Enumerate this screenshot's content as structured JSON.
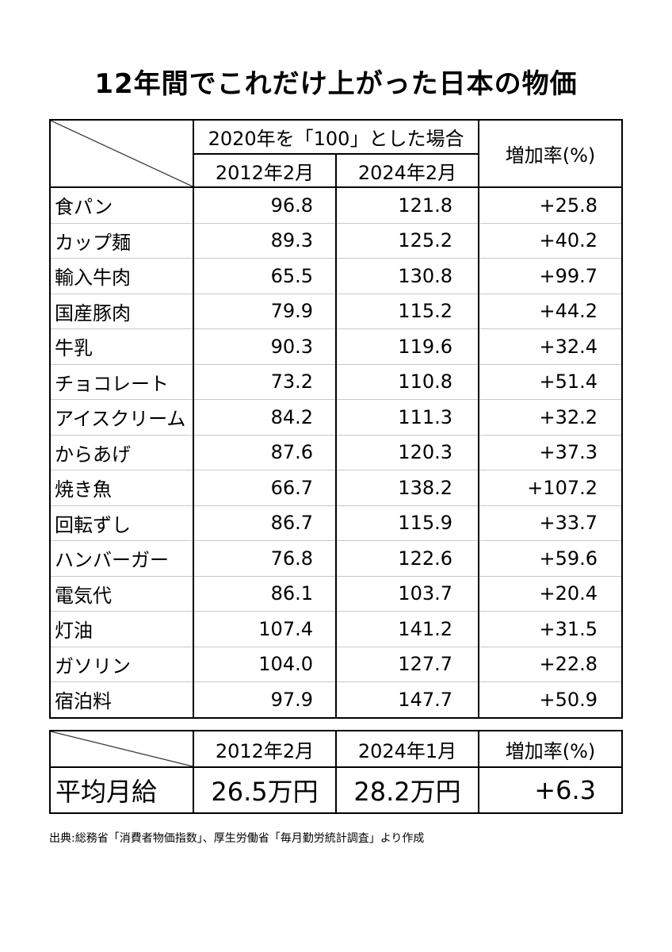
{
  "title": "12年間でこれだけ上がった日本の物価",
  "table": {
    "header_group": "2020年を「100」とした場合",
    "col_2012": "2012年2月",
    "col_2024": "2024年2月",
    "col_rate": "増加率(%)",
    "rows": [
      {
        "item": "食パン",
        "v2012": "96.8",
        "v2024": "121.8",
        "rate": "+25.8"
      },
      {
        "item": "カップ麺",
        "v2012": "89.3",
        "v2024": "125.2",
        "rate": "+40.2"
      },
      {
        "item": "輸入牛肉",
        "v2012": "65.5",
        "v2024": "130.8",
        "rate": "+99.7"
      },
      {
        "item": "国産豚肉",
        "v2012": "79.9",
        "v2024": "115.2",
        "rate": "+44.2"
      },
      {
        "item": "牛乳",
        "v2012": "90.3",
        "v2024": "119.6",
        "rate": "+32.4"
      },
      {
        "item": "チョコレート",
        "v2012": "73.2",
        "v2024": "110.8",
        "rate": "+51.4"
      },
      {
        "item": "アイスクリーム",
        "v2012": "84.2",
        "v2024": "111.3",
        "rate": "+32.2"
      },
      {
        "item": "からあげ",
        "v2012": "87.6",
        "v2024": "120.3",
        "rate": "+37.3"
      },
      {
        "item": "焼き魚",
        "v2012": "66.7",
        "v2024": "138.2",
        "rate": "+107.2"
      },
      {
        "item": "回転ずし",
        "v2012": "86.7",
        "v2024": "115.9",
        "rate": "+33.7"
      },
      {
        "item": "ハンバーガー",
        "v2012": "76.8",
        "v2024": "122.6",
        "rate": "+59.6"
      },
      {
        "item": "電気代",
        "v2012": "86.1",
        "v2024": "103.7",
        "rate": "+20.4"
      },
      {
        "item": "灯油",
        "v2012": "107.4",
        "v2024": "141.2",
        "rate": "+31.5"
      },
      {
        "item": "ガソリン",
        "v2012": "104.0",
        "v2024": "127.7",
        "rate": "+22.8"
      },
      {
        "item": "宿泊料",
        "v2012": "97.9",
        "v2024": "147.7",
        "rate": "+50.9"
      }
    ]
  },
  "wage": {
    "col_2012": "2012年2月",
    "col_2024": "2024年1月",
    "col_rate": "増加率(%)",
    "label": "平均月給",
    "v2012": "26.5万円",
    "v2024": "28.2万円",
    "rate": "+6.3"
  },
  "source": "出典:総務省「消費者物価指数」、厚生労働省「毎月勤労統計調査」より作成"
}
